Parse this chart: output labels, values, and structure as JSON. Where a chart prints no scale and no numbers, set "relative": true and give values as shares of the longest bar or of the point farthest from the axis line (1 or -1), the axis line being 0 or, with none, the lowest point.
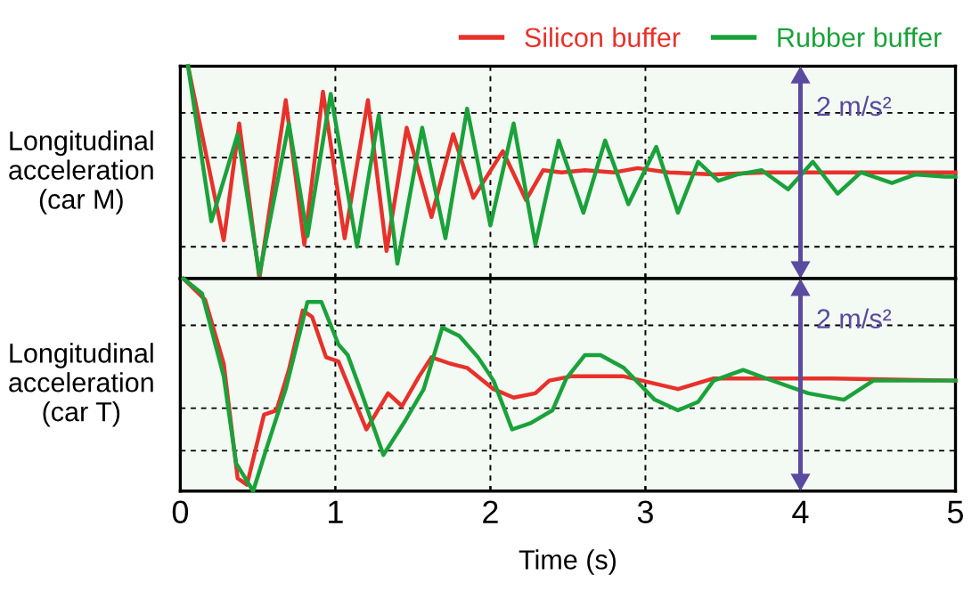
{
  "chart_data": [
    {
      "type": "line",
      "relative": true,
      "ylabel": "Longitudinal\nacceleration\n(car M)",
      "xlim": [
        0,
        5
      ],
      "xticks": [
        0,
        1,
        2,
        3,
        4,
        5
      ],
      "tick_labels": false,
      "grid": "x",
      "legend": "top right",
      "ref_lines": [
        {
          "axis": "x",
          "value": 4,
          "label": "2 m/s²",
          "color": "#5a4aa0"
        },
        {
          "axis": "y",
          "value": 0.78,
          "label": null,
          "color": "#000000",
          "line_style": "dashed"
        },
        {
          "axis": "y",
          "value": 0.57,
          "label": null,
          "color": "#000000",
          "line_style": "dashed"
        },
        {
          "axis": "y",
          "value": 0.15,
          "label": null,
          "color": "#000000",
          "line_style": "dashed"
        }
      ],
      "series": [
        {
          "name": "Silicon buffer",
          "color": "#e8312a",
          "x": [
            0.05,
            0.28,
            0.38,
            0.51,
            0.68,
            0.8,
            0.92,
            1.06,
            1.21,
            1.33,
            1.46,
            1.62,
            1.76,
            1.89,
            2.08,
            2.23,
            2.34,
            2.46,
            2.61,
            2.8,
            2.95,
            3.15,
            3.44,
            3.78,
            4.13,
            4.59,
            5.0
          ],
          "values": [
            1.0,
            0.18,
            0.73,
            0.0,
            0.84,
            0.16,
            0.88,
            0.19,
            0.84,
            0.13,
            0.71,
            0.29,
            0.68,
            0.38,
            0.6,
            0.37,
            0.51,
            0.5,
            0.51,
            0.5,
            0.52,
            0.5,
            0.49,
            0.5,
            0.5,
            0.5,
            0.5
          ]
        },
        {
          "name": "Rubber buffer",
          "color": "#1aa23a",
          "x": [
            0.05,
            0.2,
            0.37,
            0.51,
            0.7,
            0.82,
            0.97,
            1.14,
            1.28,
            1.4,
            1.56,
            1.71,
            1.85,
            2.0,
            2.15,
            2.29,
            2.44,
            2.6,
            2.74,
            2.89,
            3.07,
            3.21,
            3.34,
            3.47,
            3.59,
            3.75,
            3.92,
            4.08,
            4.24,
            4.39,
            4.59,
            4.74,
            4.93,
            5.0
          ],
          "values": [
            1.0,
            0.27,
            0.68,
            0.02,
            0.73,
            0.2,
            0.87,
            0.15,
            0.77,
            0.07,
            0.71,
            0.19,
            0.8,
            0.25,
            0.73,
            0.16,
            0.65,
            0.31,
            0.65,
            0.35,
            0.62,
            0.31,
            0.55,
            0.46,
            0.49,
            0.51,
            0.42,
            0.55,
            0.4,
            0.5,
            0.45,
            0.49,
            0.48,
            0.48
          ]
        }
      ]
    },
    {
      "type": "line",
      "relative": true,
      "ylabel": "Longitudinal\nacceleration\n(car T)",
      "xlabel": "Time (s)",
      "xlim": [
        0,
        5
      ],
      "xticks": [
        0,
        1,
        2,
        3,
        4,
        5
      ],
      "tick_labels": "x",
      "grid": "x",
      "ref_lines": [
        {
          "axis": "x",
          "value": 4,
          "label": "2 m/s²",
          "color": "#5a4aa0"
        },
        {
          "axis": "y",
          "value": 0.78,
          "label": null,
          "color": "#000000",
          "line_style": "dashed"
        },
        {
          "axis": "y",
          "value": 0.39,
          "label": null,
          "color": "#000000",
          "line_style": "dashed"
        },
        {
          "axis": "y",
          "value": 0.19,
          "label": null,
          "color": "#000000",
          "line_style": "dashed"
        }
      ],
      "series": [
        {
          "color": "#e8312a",
          "x": [
            0.02,
            0.16,
            0.28,
            0.37,
            0.43,
            0.54,
            0.62,
            0.7,
            0.79,
            0.85,
            0.94,
            1.02,
            1.2,
            1.34,
            1.43,
            1.54,
            1.62,
            1.74,
            1.85,
            2.02,
            2.15,
            2.29,
            2.38,
            2.52,
            2.86,
            3.21,
            3.44,
            3.82,
            4.21,
            5.0
          ],
          "values": [
            1.0,
            0.9,
            0.6,
            0.06,
            0.03,
            0.36,
            0.38,
            0.57,
            0.85,
            0.82,
            0.63,
            0.61,
            0.29,
            0.46,
            0.4,
            0.54,
            0.63,
            0.6,
            0.58,
            0.48,
            0.44,
            0.46,
            0.52,
            0.54,
            0.54,
            0.48,
            0.53,
            0.53,
            0.53,
            0.52
          ]
        },
        {
          "color": "#1aa23a",
          "x": [
            0.02,
            0.14,
            0.28,
            0.36,
            0.47,
            0.56,
            0.68,
            0.82,
            0.91,
            1.02,
            1.08,
            1.16,
            1.31,
            1.45,
            1.57,
            1.69,
            1.8,
            1.92,
            2.02,
            2.14,
            2.26,
            2.4,
            2.49,
            2.61,
            2.71,
            2.86,
            3.06,
            3.21,
            3.34,
            3.44,
            3.63,
            3.78,
            4.05,
            4.28,
            4.47,
            4.78,
            5.0
          ],
          "values": [
            1.0,
            0.93,
            0.54,
            0.13,
            0.0,
            0.21,
            0.48,
            0.89,
            0.89,
            0.69,
            0.64,
            0.48,
            0.17,
            0.33,
            0.48,
            0.77,
            0.73,
            0.63,
            0.52,
            0.29,
            0.32,
            0.38,
            0.53,
            0.64,
            0.64,
            0.58,
            0.43,
            0.38,
            0.42,
            0.52,
            0.57,
            0.53,
            0.46,
            0.43,
            0.52,
            0.52,
            0.52
          ]
        }
      ]
    }
  ]
}
